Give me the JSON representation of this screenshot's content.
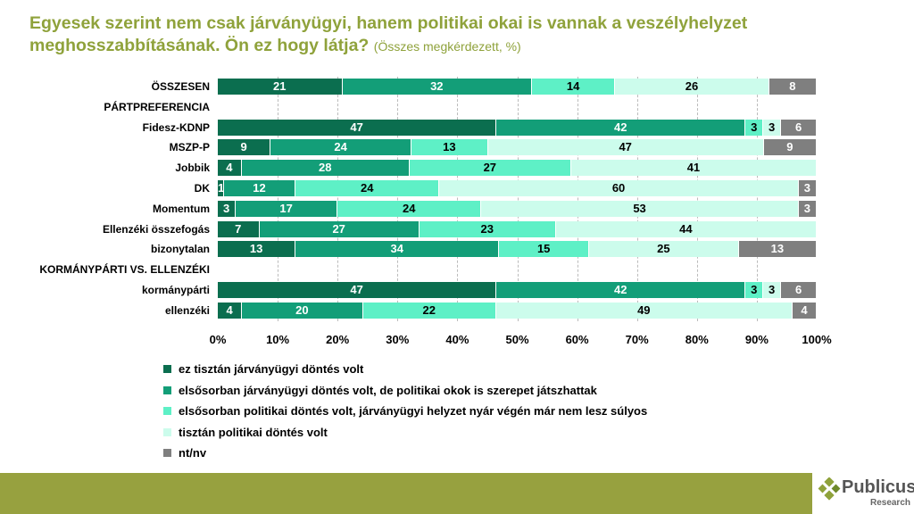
{
  "title": {
    "main": "Egyesek szerint nem csak járványügyi, hanem politikai okai is vannak a veszélyhelyzet meghosszabbításának. Ön ez hogy látja?",
    "sub": "(Összes megkérdezett, %)"
  },
  "chart_data": {
    "type": "bar",
    "stacked": true,
    "orientation": "horizontal",
    "xlim": [
      0,
      100
    ],
    "ticks": [
      "0%",
      "10%",
      "20%",
      "30%",
      "40%",
      "50%",
      "60%",
      "70%",
      "80%",
      "90%",
      "100%"
    ],
    "colors": [
      "#0b6e4f",
      "#139e78",
      "#5ef0c6",
      "#ccfcec",
      "#7f7f7f"
    ],
    "legend": [
      "ez tisztán járványügyi döntés volt",
      "elsősorban járványügyi döntés volt, de politikai okok is szerepet játszhattak",
      "elsősorban politikai döntés volt, járványügyi helyzet nyár végén már nem lesz súlyos",
      "tisztán politikai döntés volt",
      "nt/nv"
    ],
    "rows": [
      {
        "label": "ÖSSZESEN",
        "values": [
          21,
          32,
          14,
          26,
          8
        ]
      },
      {
        "label": "PÁRTPREFERENCIA",
        "header": true
      },
      {
        "label": "Fidesz-KDNP",
        "values": [
          47,
          42,
          3,
          3,
          6
        ]
      },
      {
        "label": "MSZP-P",
        "values": [
          9,
          24,
          13,
          47,
          9
        ]
      },
      {
        "label": "Jobbik",
        "values": [
          4,
          28,
          27,
          41,
          0
        ]
      },
      {
        "label": "DK",
        "values": [
          1,
          12,
          24,
          60,
          3
        ]
      },
      {
        "label": "Momentum",
        "values": [
          3,
          17,
          24,
          53,
          3
        ]
      },
      {
        "label": "Ellenzéki összefogás",
        "values": [
          7,
          27,
          23,
          44,
          0
        ]
      },
      {
        "label": "bizonytalan",
        "values": [
          13,
          34,
          15,
          25,
          13
        ]
      },
      {
        "label": "KORMÁNYPÁRTI VS. ELLENZÉKI",
        "header": true
      },
      {
        "label": "kormánypárti",
        "values": [
          47,
          42,
          3,
          3,
          6
        ]
      },
      {
        "label": "ellenzéki",
        "values": [
          4,
          20,
          22,
          49,
          4
        ]
      }
    ]
  },
  "logo": {
    "name": "Publicus",
    "sub": "Research"
  }
}
